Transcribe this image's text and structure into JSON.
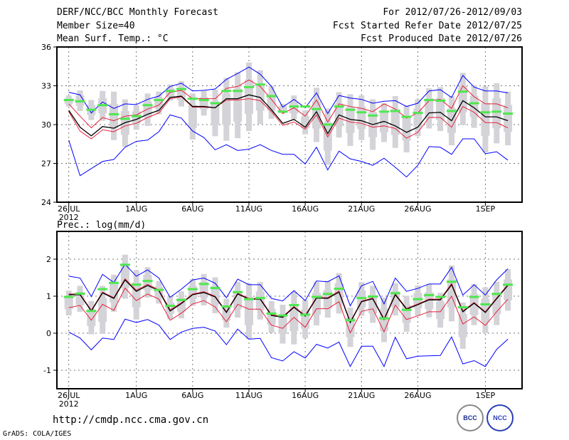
{
  "header": {
    "title": "DERF/NCC/BCC Monthly Forecast",
    "member_size": "Member Size=40",
    "variable": "Mean Surf. Temp.: °C",
    "period": "For 2012/07/26-2012/09/03",
    "start_date": "Fcst Started Refer Date 2012/07/25",
    "produced_date": "Fcst Produced Date 2012/07/26"
  },
  "footer": {
    "url": "http://cmdp.ncc.cma.gov.cn",
    "credit": "GrADS: COLA/IGES",
    "logo_left": "BCC",
    "logo_right": "NCC"
  },
  "colors": {
    "mean": "#000000",
    "spread": "#e8203a",
    "extreme": "#0000ff",
    "obs": "#4de84d",
    "box": "#d3d3d8"
  },
  "chart_data": [
    {
      "type": "line",
      "title": "Mean Surf. Temp.: °C",
      "ylim": [
        24,
        36
      ],
      "yticks": [
        24,
        27,
        30,
        33,
        36
      ],
      "xticks": [
        {
          "day": 0,
          "label": "26JUL"
        },
        {
          "day": 6,
          "label": "1AUG"
        },
        {
          "day": 11,
          "label": "6AUG"
        },
        {
          "day": 16,
          "label": "11AUG"
        },
        {
          "day": 21,
          "label": "16AUG"
        },
        {
          "day": 26,
          "label": "21AUG"
        },
        {
          "day": 31,
          "label": "26AUG"
        },
        {
          "day": 37,
          "label": "1SEP"
        }
      ],
      "year_label": "2012",
      "grid": true,
      "series": {
        "mean": [
          31.1,
          29.8,
          29.13,
          29.85,
          29.72,
          30.15,
          30.4,
          30.8,
          31.1,
          32.1,
          32.2,
          31.4,
          31.4,
          31.3,
          32.0,
          32.0,
          32.3,
          32.1,
          31.15,
          30.1,
          30.4,
          29.8,
          31.0,
          29.3,
          30.75,
          30.4,
          30.3,
          30.0,
          30.25,
          29.9,
          29.4,
          29.8,
          30.9,
          30.95,
          30.3,
          31.85,
          31.3,
          30.6,
          30.6,
          30.3
        ],
        "upper": [
          31.6,
          30.65,
          29.75,
          30.55,
          30.3,
          30.65,
          30.75,
          31.2,
          31.5,
          32.5,
          32.65,
          32.0,
          32.0,
          32.0,
          32.8,
          32.95,
          33.45,
          32.95,
          31.95,
          30.85,
          31.3,
          30.65,
          31.9,
          30.2,
          31.6,
          31.4,
          31.25,
          31.0,
          31.6,
          31.2,
          30.5,
          30.9,
          31.85,
          31.95,
          31.25,
          33.0,
          32.15,
          31.6,
          31.6,
          31.3
        ],
        "lower": [
          31.0,
          29.5,
          28.9,
          29.6,
          29.45,
          29.9,
          30.1,
          30.55,
          30.9,
          32.0,
          32.15,
          31.35,
          31.35,
          31.3,
          31.9,
          31.9,
          32.0,
          31.85,
          31.0,
          29.95,
          30.2,
          29.65,
          30.75,
          29.05,
          30.5,
          30.2,
          30.1,
          29.8,
          29.9,
          29.7,
          28.95,
          29.4,
          30.55,
          30.55,
          29.8,
          31.4,
          30.95,
          30.15,
          30.15,
          29.75
        ],
        "max": [
          32.5,
          32.3,
          30.9,
          31.75,
          31.25,
          31.6,
          31.55,
          31.95,
          32.2,
          32.95,
          33.2,
          32.6,
          32.65,
          32.75,
          33.5,
          33.95,
          34.45,
          33.9,
          32.95,
          31.35,
          31.95,
          31.3,
          32.45,
          30.85,
          32.25,
          32.05,
          31.95,
          31.65,
          31.8,
          31.85,
          31.4,
          31.65,
          32.6,
          32.7,
          32.1,
          33.8,
          32.9,
          32.6,
          32.6,
          32.45
        ],
        "min": [
          28.8,
          26.05,
          26.6,
          27.15,
          27.3,
          28.25,
          28.7,
          28.8,
          29.45,
          30.75,
          30.5,
          29.5,
          29.0,
          28.05,
          28.45,
          28.0,
          28.1,
          28.45,
          28.0,
          27.7,
          27.7,
          26.95,
          28.25,
          26.5,
          27.95,
          27.35,
          27.15,
          26.85,
          27.4,
          26.7,
          25.95,
          26.85,
          28.3,
          28.25,
          27.7,
          28.9,
          28.9,
          27.75,
          27.9,
          27.25
        ],
        "obs": [
          31.9,
          31.8,
          31.15,
          31.5,
          30.8,
          30.45,
          30.65,
          31.5,
          31.9,
          32.6,
          32.75,
          32.0,
          31.9,
          31.65,
          32.6,
          32.6,
          32.9,
          33.1,
          32.2,
          31.0,
          31.4,
          31.4,
          31.2,
          30.0,
          31.4,
          31.15,
          30.95,
          30.7,
          31.0,
          31.05,
          30.6,
          30.9,
          31.9,
          31.85,
          31.05,
          32.55,
          31.65,
          30.95,
          31.0,
          30.85
        ],
        "box_hi": [
          32.25,
          32.65,
          31.9,
          32.6,
          32.55,
          31.95,
          31.5,
          32.4,
          32.55,
          33.1,
          33.35,
          32.4,
          32.6,
          32.7,
          33.6,
          34.05,
          34.8,
          34.2,
          33.0,
          31.6,
          32.25,
          31.1,
          32.85,
          31.25,
          32.5,
          32.35,
          32.25,
          31.95,
          31.65,
          32.2,
          31.5,
          31.95,
          32.8,
          32.9,
          32.2,
          34.0,
          33.05,
          32.95,
          33.2,
          32.55
        ],
        "box_lo": [
          31.4,
          31.05,
          30.35,
          30.3,
          28.8,
          28.3,
          29.6,
          29.9,
          30.8,
          31.85,
          31.4,
          28.85,
          30.7,
          29.1,
          28.75,
          28.95,
          29.5,
          30.05,
          30.45,
          30.9,
          30.4,
          29.25,
          28.65,
          26.9,
          29.0,
          28.35,
          28.8,
          28.05,
          28.65,
          28.2,
          27.85,
          29.1,
          29.7,
          29.5,
          28.4,
          29.95,
          29.75,
          27.85,
          28.55,
          28.4
        ]
      }
    },
    {
      "type": "line",
      "title": "Prec.: log(mm/d)",
      "ylim": [
        -1.5,
        2.75
      ],
      "yticks": [
        -1,
        0,
        1,
        2
      ],
      "xticks": [
        {
          "day": 0,
          "label": "26JUL"
        },
        {
          "day": 6,
          "label": "1AUG"
        },
        {
          "day": 11,
          "label": "6AUG"
        },
        {
          "day": 16,
          "label": "11AUG"
        },
        {
          "day": 21,
          "label": "16AUG"
        },
        {
          "day": 26,
          "label": "21AUG"
        },
        {
          "day": 31,
          "label": "26AUG"
        },
        {
          "day": 37,
          "label": "1SEP"
        }
      ],
      "year_label": "2012",
      "grid": true,
      "series": {
        "mean": [
          1.04,
          1.04,
          0.6,
          1.09,
          0.94,
          1.44,
          1.13,
          1.29,
          1.15,
          0.6,
          0.8,
          1.04,
          1.1,
          0.98,
          0.56,
          1.06,
          0.92,
          0.92,
          0.48,
          0.43,
          0.7,
          0.46,
          0.95,
          0.94,
          1.11,
          0.29,
          0.85,
          0.93,
          0.37,
          1.04,
          0.65,
          0.77,
          0.9,
          0.9,
          1.31,
          0.58,
          0.81,
          0.56,
          0.93,
          1.29
        ],
        "upper": [
          1.06,
          1.06,
          0.62,
          1.11,
          0.96,
          1.47,
          1.16,
          1.32,
          1.17,
          0.63,
          0.82,
          1.06,
          1.12,
          1.0,
          0.58,
          1.08,
          0.94,
          0.94,
          0.5,
          0.45,
          0.72,
          0.48,
          0.97,
          0.96,
          1.14,
          0.31,
          0.87,
          0.95,
          0.39,
          1.06,
          0.67,
          0.79,
          0.92,
          0.92,
          1.34,
          0.6,
          0.83,
          0.58,
          0.95,
          1.31
        ],
        "lower": [
          0.69,
          0.75,
          0.35,
          0.78,
          0.62,
          1.22,
          0.88,
          1.06,
          0.92,
          0.35,
          0.54,
          0.79,
          0.88,
          0.71,
          0.31,
          0.78,
          0.65,
          0.65,
          0.22,
          0.13,
          0.43,
          0.16,
          0.66,
          0.66,
          0.85,
          0.01,
          0.59,
          0.66,
          0.04,
          0.76,
          0.37,
          0.47,
          0.58,
          0.58,
          1.0,
          0.25,
          0.44,
          0.21,
          0.58,
          0.92
        ],
        "max": [
          1.54,
          1.49,
          0.99,
          1.59,
          1.37,
          1.86,
          1.54,
          1.71,
          1.49,
          0.97,
          1.19,
          1.44,
          1.49,
          1.35,
          0.96,
          1.46,
          1.31,
          1.31,
          0.94,
          0.87,
          1.15,
          0.88,
          1.41,
          1.39,
          1.55,
          0.74,
          1.28,
          1.4,
          0.79,
          1.49,
          1.13,
          1.21,
          1.33,
          1.33,
          1.78,
          1.03,
          1.31,
          1.03,
          1.44,
          1.74
        ],
        "min": [
          0.03,
          -0.13,
          -0.45,
          -0.13,
          -0.17,
          0.38,
          0.29,
          0.37,
          0.22,
          -0.17,
          0.03,
          0.13,
          0.16,
          0.06,
          -0.31,
          0.11,
          -0.16,
          -0.14,
          -0.66,
          -0.75,
          -0.5,
          -0.67,
          -0.3,
          -0.4,
          -0.24,
          -0.9,
          -0.35,
          -0.35,
          -0.9,
          -0.11,
          -0.69,
          -0.62,
          -0.61,
          -0.6,
          -0.1,
          -0.83,
          -0.74,
          -0.9,
          -0.44,
          -0.16
        ],
        "obs": [
          0.98,
          1.07,
          0.6,
          1.19,
          1.36,
          1.85,
          1.31,
          1.41,
          1.17,
          0.74,
          0.9,
          1.19,
          1.33,
          1.22,
          0.72,
          1.11,
          0.92,
          0.95,
          0.53,
          0.48,
          0.76,
          0.5,
          0.98,
          1.06,
          1.2,
          0.35,
          0.95,
          0.99,
          0.4,
          1.08,
          0.63,
          0.92,
          1.03,
          0.98,
          1.39,
          0.7,
          0.98,
          0.78,
          1.06,
          1.31
        ],
        "box_hi": [
          1.15,
          1.28,
          0.87,
          1.28,
          1.58,
          2.12,
          1.7,
          1.78,
          1.41,
          0.98,
          1.13,
          1.46,
          1.6,
          1.51,
          0.93,
          1.39,
          1.35,
          1.38,
          0.87,
          0.77,
          1.12,
          0.9,
          1.38,
          1.41,
          1.62,
          0.69,
          1.38,
          1.28,
          0.96,
          1.35,
          1.01,
          1.29,
          1.33,
          1.09,
          1.83,
          0.83,
          1.33,
          1.24,
          1.39,
          1.73
        ],
        "box_lo": [
          0.48,
          0.58,
          -0.03,
          -0.02,
          0.58,
          0.93,
          0.37,
          0.96,
          0.8,
          0.38,
          0.4,
          0.74,
          0.75,
          0.54,
          0.15,
          0.42,
          -0.16,
          0.37,
          0.01,
          -0.28,
          -0.3,
          -0.14,
          0.21,
          0.42,
          0.53,
          -0.37,
          0.47,
          0.28,
          -0.24,
          0.48,
          0.04,
          0.47,
          0.43,
          0.15,
          0.32,
          -0.42,
          0.22,
          0.0,
          0.22,
          0.61
        ]
      }
    }
  ]
}
